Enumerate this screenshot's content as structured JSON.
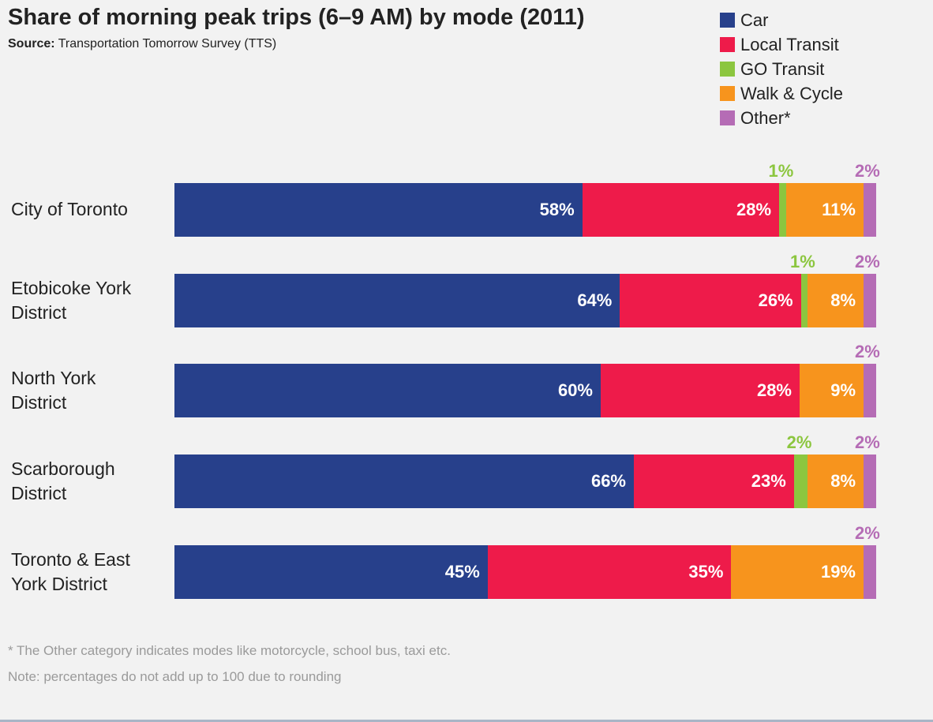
{
  "header": {
    "title": "Share of morning peak trips (6–9 AM) by mode (2011)",
    "source_label": "Source:",
    "source_text": "Transportation Tomorrow Survey (TTS)"
  },
  "legend": [
    {
      "name": "Car",
      "color": "#27408b"
    },
    {
      "name": "Local Transit",
      "color": "#ee1b4a"
    },
    {
      "name": "GO Transit",
      "color": "#8cc63f"
    },
    {
      "name": "Walk & Cycle",
      "color": "#f7941d"
    },
    {
      "name": "Other*",
      "color": "#b56cb5"
    }
  ],
  "chart_data": {
    "type": "bar",
    "orientation": "horizontal",
    "stacked": true,
    "title": "Share of morning peak trips (6–9 AM) by mode (2011)",
    "xlim": [
      0,
      100
    ],
    "grid": false,
    "legend_position": "top-right",
    "categories": [
      "City of Toronto",
      "Etobicoke York District",
      "North York District",
      "Scarborough District",
      "Toronto & East York District"
    ],
    "series": [
      {
        "name": "Car",
        "color": "#27408b",
        "values": [
          58,
          64,
          60,
          66,
          45
        ]
      },
      {
        "name": "Local Transit",
        "color": "#ee1b4a",
        "values": [
          28,
          26,
          28,
          23,
          35
        ]
      },
      {
        "name": "GO Transit",
        "color": "#8cc63f",
        "values": [
          1,
          1,
          0,
          2,
          0
        ]
      },
      {
        "name": "Walk & Cycle",
        "color": "#f7941d",
        "values": [
          11,
          8,
          9,
          8,
          19
        ]
      },
      {
        "name": "Other*",
        "color": "#b56cb5",
        "values": [
          2,
          2,
          2,
          2,
          2
        ]
      }
    ],
    "value_labels": [
      [
        "58%",
        "28%",
        "1%",
        "11%",
        "2%"
      ],
      [
        "64%",
        "26%",
        "1%",
        "8%",
        "2%"
      ],
      [
        "60%",
        "28%",
        "",
        "9%",
        "2%"
      ],
      [
        "66%",
        "23%",
        "2%",
        "8%",
        "2%"
      ],
      [
        "45%",
        "35%",
        "",
        "19%",
        "2%"
      ]
    ],
    "row_labels": [
      [
        "City of Toronto"
      ],
      [
        "Etobicoke York",
        "District"
      ],
      [
        "North York",
        "District"
      ],
      [
        "Scarborough",
        "District"
      ],
      [
        "Toronto & East",
        "York District"
      ]
    ]
  },
  "footnotes": [
    "* The Other category indicates modes like motorcycle, school bus, taxi etc.",
    "Note: percentages do not add up to 100 due to rounding"
  ]
}
